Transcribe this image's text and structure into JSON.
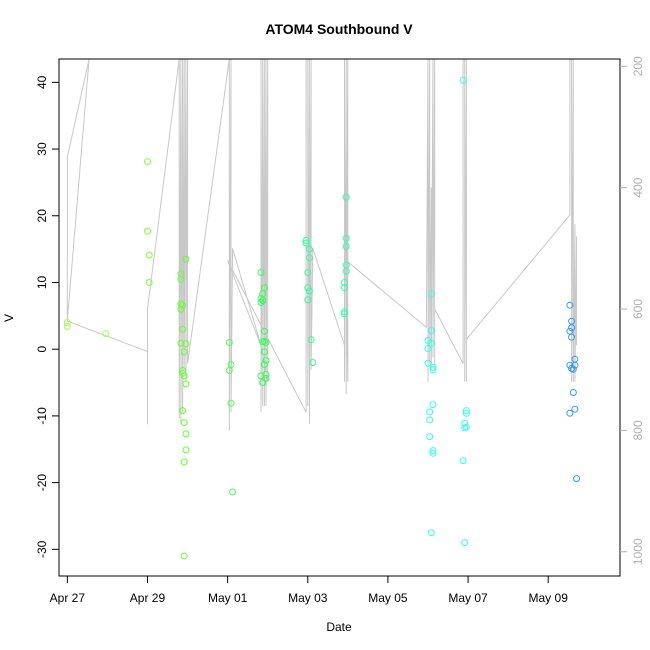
{
  "chart_data": {
    "type": "scatter",
    "title": "ATOM4 Southbound V",
    "xlabel": "Date",
    "ylabel": "V",
    "xlim": [
      "2016-04-26T19:00",
      "2016-05-10T19:00"
    ],
    "ylim": [
      -34,
      43.5
    ],
    "y2lim": [
      1040,
      188
    ],
    "x_ticks": [
      {
        "value": "2016-04-27T00:00",
        "label": "Apr 27"
      },
      {
        "value": "2016-04-29T00:00",
        "label": "Apr 29"
      },
      {
        "value": "2016-05-01T00:00",
        "label": "May 01"
      },
      {
        "value": "2016-05-03T00:00",
        "label": "May 03"
      },
      {
        "value": "2016-05-05T00:00",
        "label": "May 05"
      },
      {
        "value": "2016-05-07T00:00",
        "label": "May 07"
      },
      {
        "value": "2016-05-09T00:00",
        "label": "May 09"
      }
    ],
    "y_ticks": [
      -30,
      -20,
      -10,
      0,
      10,
      20,
      30,
      40
    ],
    "y_tick_labels": [
      "-30",
      "-20",
      "-10",
      "0",
      "10",
      "20",
      "30",
      "40"
    ],
    "y2_ticks": [
      200,
      400,
      600,
      800,
      1000
    ],
    "y2_tick_labels": [
      "200",
      "400",
      "600",
      "800",
      "1000"
    ],
    "grid": false,
    "colors": {
      "line": "#c8c8c8",
      "axis": "#000000",
      "axis2": "#b0b0b0"
    },
    "points": [
      {
        "x": "2016-04-27T00:00",
        "y": 4.0,
        "color": "#a6ff4d"
      },
      {
        "x": "2016-04-27T00:00",
        "y": 3.4,
        "color": "#a6ff4d"
      },
      {
        "x": "2016-04-27T23:00",
        "y": 2.3,
        "color": "#99ff4d"
      },
      {
        "x": "2016-04-29T00:00",
        "y": 28.1,
        "color": "#80ff33"
      },
      {
        "x": "2016-04-29T00:00",
        "y": 17.7,
        "color": "#80ff33"
      },
      {
        "x": "2016-04-29T01:00",
        "y": 14.1,
        "color": "#80ff33"
      },
      {
        "x": "2016-04-29T01:00",
        "y": 10.0,
        "color": "#80ff33"
      },
      {
        "x": "2016-04-29T20:00",
        "y": 11.3,
        "color": "#66ff33"
      },
      {
        "x": "2016-04-29T20:00",
        "y": 10.5,
        "color": "#66ff33"
      },
      {
        "x": "2016-04-29T20:00",
        "y": 6.8,
        "color": "#66ff33"
      },
      {
        "x": "2016-04-29T20:00",
        "y": 6.0,
        "color": "#66ff33"
      },
      {
        "x": "2016-04-29T20:00",
        "y": 0.9,
        "color": "#66ff33"
      },
      {
        "x": "2016-04-29T21:00",
        "y": 6.6,
        "color": "#66ff33"
      },
      {
        "x": "2016-04-29T21:00",
        "y": 3.0,
        "color": "#66ff33"
      },
      {
        "x": "2016-04-29T21:00",
        "y": -3.2,
        "color": "#66ff33"
      },
      {
        "x": "2016-04-29T21:00",
        "y": -3.6,
        "color": "#66ff33"
      },
      {
        "x": "2016-04-29T21:00",
        "y": -9.2,
        "color": "#66ff33"
      },
      {
        "x": "2016-04-29T22:00",
        "y": -4.0,
        "color": "#66ff33"
      },
      {
        "x": "2016-04-29T22:00",
        "y": -0.4,
        "color": "#66ff33"
      },
      {
        "x": "2016-04-29T22:00",
        "y": -11.0,
        "color": "#66ff33"
      },
      {
        "x": "2016-04-29T22:00",
        "y": -16.9,
        "color": "#66ff33"
      },
      {
        "x": "2016-04-29T22:00",
        "y": -31.0,
        "color": "#66ff33"
      },
      {
        "x": "2016-04-29T23:00",
        "y": 13.5,
        "color": "#66ff33"
      },
      {
        "x": "2016-04-29T23:00",
        "y": 0.8,
        "color": "#66ff33"
      },
      {
        "x": "2016-04-29T23:00",
        "y": -5.2,
        "color": "#66ff33"
      },
      {
        "x": "2016-04-29T23:00",
        "y": -12.7,
        "color": "#66ff33"
      },
      {
        "x": "2016-04-29T23:00",
        "y": -15.1,
        "color": "#66ff33"
      },
      {
        "x": "2016-05-01T01:00",
        "y": 1.0,
        "color": "#4dff4d"
      },
      {
        "x": "2016-05-01T01:00",
        "y": -3.2,
        "color": "#4dff4d"
      },
      {
        "x": "2016-05-01T02:00",
        "y": -2.3,
        "color": "#4dff4d"
      },
      {
        "x": "2016-05-01T02:00",
        "y": -8.1,
        "color": "#4dff4d"
      },
      {
        "x": "2016-05-01T03:00",
        "y": -21.4,
        "color": "#4dff4d"
      },
      {
        "x": "2016-05-01T20:00",
        "y": 11.5,
        "color": "#33ff55"
      },
      {
        "x": "2016-05-01T20:00",
        "y": 7.6,
        "color": "#33ff55"
      },
      {
        "x": "2016-05-01T20:00",
        "y": 7.0,
        "color": "#33ff55"
      },
      {
        "x": "2016-05-01T20:00",
        "y": -4.0,
        "color": "#33ff55"
      },
      {
        "x": "2016-05-01T21:00",
        "y": 8.3,
        "color": "#33ff55"
      },
      {
        "x": "2016-05-01T21:00",
        "y": 7.3,
        "color": "#33ff55"
      },
      {
        "x": "2016-05-01T21:00",
        "y": 1.1,
        "color": "#33ff55"
      },
      {
        "x": "2016-05-01T21:00",
        "y": -5.0,
        "color": "#33ff55"
      },
      {
        "x": "2016-05-01T22:00",
        "y": 9.2,
        "color": "#33ff55"
      },
      {
        "x": "2016-05-01T22:00",
        "y": 2.7,
        "color": "#33ff55"
      },
      {
        "x": "2016-05-01T22:00",
        "y": 1.2,
        "color": "#33ff55"
      },
      {
        "x": "2016-05-01T22:00",
        "y": -0.4,
        "color": "#33ff55"
      },
      {
        "x": "2016-05-01T22:00",
        "y": -2.3,
        "color": "#33ff55"
      },
      {
        "x": "2016-05-01T23:00",
        "y": 1.0,
        "color": "#33ff55"
      },
      {
        "x": "2016-05-01T23:00",
        "y": -1.7,
        "color": "#33ff55"
      },
      {
        "x": "2016-05-01T23:00",
        "y": -3.8,
        "color": "#33ff55"
      },
      {
        "x": "2016-05-01T23:00",
        "y": -4.4,
        "color": "#33ff55"
      },
      {
        "x": "2016-05-02T23:00",
        "y": 16.3,
        "color": "#33ff99"
      },
      {
        "x": "2016-05-02T23:00",
        "y": 15.9,
        "color": "#33ff99"
      },
      {
        "x": "2016-05-03T00:00",
        "y": 11.5,
        "color": "#33ff99"
      },
      {
        "x": "2016-05-03T00:00",
        "y": 9.2,
        "color": "#33ff99"
      },
      {
        "x": "2016-05-03T00:00",
        "y": 7.4,
        "color": "#33ff99"
      },
      {
        "x": "2016-05-03T01:00",
        "y": 15.0,
        "color": "#33ff99"
      },
      {
        "x": "2016-05-03T01:00",
        "y": 13.7,
        "color": "#33ff99"
      },
      {
        "x": "2016-05-03T01:00",
        "y": 8.7,
        "color": "#33ff99"
      },
      {
        "x": "2016-05-03T02:00",
        "y": 1.4,
        "color": "#33ff99"
      },
      {
        "x": "2016-05-03T03:00",
        "y": -2.0,
        "color": "#33ff99"
      },
      {
        "x": "2016-05-03T22:00",
        "y": 10.0,
        "color": "#33ffaa"
      },
      {
        "x": "2016-05-03T22:00",
        "y": 9.2,
        "color": "#33ffaa"
      },
      {
        "x": "2016-05-03T22:00",
        "y": 5.6,
        "color": "#33ffaa"
      },
      {
        "x": "2016-05-03T22:00",
        "y": 5.3,
        "color": "#33ffaa"
      },
      {
        "x": "2016-05-03T23:00",
        "y": 22.8,
        "color": "#33ffaa"
      },
      {
        "x": "2016-05-03T23:00",
        "y": 16.6,
        "color": "#33ffaa"
      },
      {
        "x": "2016-05-03T23:00",
        "y": 15.4,
        "color": "#33ffaa"
      },
      {
        "x": "2016-05-03T23:00",
        "y": 12.6,
        "color": "#33ffaa"
      },
      {
        "x": "2016-05-03T23:00",
        "y": 11.7,
        "color": "#33ffaa"
      },
      {
        "x": "2016-05-06T00:00",
        "y": 1.3,
        "color": "#33ffee"
      },
      {
        "x": "2016-05-06T00:00",
        "y": 0.1,
        "color": "#33ffee"
      },
      {
        "x": "2016-05-06T00:00",
        "y": -2.1,
        "color": "#33ffee"
      },
      {
        "x": "2016-05-06T01:00",
        "y": -9.4,
        "color": "#33ffee"
      },
      {
        "x": "2016-05-06T01:00",
        "y": -10.6,
        "color": "#33ffee"
      },
      {
        "x": "2016-05-06T01:00",
        "y": -13.1,
        "color": "#33ffee"
      },
      {
        "x": "2016-05-06T02:00",
        "y": 8.3,
        "color": "#33ffee"
      },
      {
        "x": "2016-05-06T02:00",
        "y": 2.8,
        "color": "#33ffee"
      },
      {
        "x": "2016-05-06T02:00",
        "y": 0.9,
        "color": "#33ffee"
      },
      {
        "x": "2016-05-06T02:00",
        "y": -27.5,
        "color": "#33ffee"
      },
      {
        "x": "2016-05-06T03:00",
        "y": -2.7,
        "color": "#33ffee"
      },
      {
        "x": "2016-05-06T03:00",
        "y": -3.1,
        "color": "#33ffee"
      },
      {
        "x": "2016-05-06T03:00",
        "y": -8.3,
        "color": "#33ffee"
      },
      {
        "x": "2016-05-06T03:00",
        "y": -15.2,
        "color": "#33ffee"
      },
      {
        "x": "2016-05-06T03:00",
        "y": -15.6,
        "color": "#33ffee"
      },
      {
        "x": "2016-05-06T21:00",
        "y": 40.3,
        "color": "#33fff5"
      },
      {
        "x": "2016-05-06T21:00",
        "y": -16.7,
        "color": "#33fff5"
      },
      {
        "x": "2016-05-06T22:00",
        "y": -11.1,
        "color": "#33fff5"
      },
      {
        "x": "2016-05-06T22:00",
        "y": -11.8,
        "color": "#33fff5"
      },
      {
        "x": "2016-05-06T22:00",
        "y": -29.0,
        "color": "#33fff5"
      },
      {
        "x": "2016-05-06T23:00",
        "y": -9.2,
        "color": "#33fff5"
      },
      {
        "x": "2016-05-06T23:00",
        "y": -9.6,
        "color": "#33fff5"
      },
      {
        "x": "2016-05-06T23:00",
        "y": -11.7,
        "color": "#33fff5"
      },
      {
        "x": "2016-05-09T13:00",
        "y": 6.6,
        "color": "#3399ff"
      },
      {
        "x": "2016-05-09T13:00",
        "y": 2.7,
        "color": "#3399ff"
      },
      {
        "x": "2016-05-09T13:00",
        "y": -2.4,
        "color": "#3399ff"
      },
      {
        "x": "2016-05-09T13:00",
        "y": -9.6,
        "color": "#3399ff"
      },
      {
        "x": "2016-05-09T14:00",
        "y": 4.2,
        "color": "#3399ff"
      },
      {
        "x": "2016-05-09T14:00",
        "y": 3.2,
        "color": "#3399ff"
      },
      {
        "x": "2016-05-09T14:00",
        "y": 1.8,
        "color": "#3399ff"
      },
      {
        "x": "2016-05-09T14:00",
        "y": -2.9,
        "color": "#3399ff"
      },
      {
        "x": "2016-05-09T15:00",
        "y": -3.0,
        "color": "#3399ff"
      },
      {
        "x": "2016-05-09T15:00",
        "y": -6.5,
        "color": "#3399ff"
      },
      {
        "x": "2016-05-09T16:00",
        "y": -1.5,
        "color": "#3399ff"
      },
      {
        "x": "2016-05-09T16:00",
        "y": -2.4,
        "color": "#3399ff"
      },
      {
        "x": "2016-05-09T16:00",
        "y": -9.0,
        "color": "#3399ff"
      },
      {
        "x": "2016-05-09T17:00",
        "y": -19.4,
        "color": "#3399ff"
      }
    ],
    "line_y2": [
      [
        "2016-04-27T00:00",
        620
      ],
      [
        "2016-04-27T00:00",
        350
      ],
      [
        "2016-04-27T13:00",
        188
      ],
      [
        "2016-04-27T00:00",
        620
      ],
      [
        "2016-04-29T00:00",
        670
      ],
      [
        "2016-04-29T00:00",
        790
      ],
      [
        "2016-04-29T00:00",
        600
      ],
      [
        "2016-04-29T19:00",
        188
      ],
      [
        "2016-04-29T19:00",
        780
      ],
      [
        "2016-04-29T20:00",
        188
      ],
      [
        "2016-04-29T20:00",
        790
      ],
      [
        "2016-04-29T21:00",
        188
      ],
      [
        "2016-04-29T21:00",
        770
      ],
      [
        "2016-04-29T22:00",
        188
      ],
      [
        "2016-04-29T22:00",
        700
      ],
      [
        "2016-04-29T23:00",
        188
      ],
      [
        "2016-04-29T23:00",
        720
      ],
      [
        "2016-04-30T00:00",
        188
      ],
      [
        "2016-04-30T00:00",
        690
      ],
      [
        "2016-05-01T01:00",
        188
      ],
      [
        "2016-05-01T01:00",
        800
      ],
      [
        "2016-05-01T02:00",
        188
      ],
      [
        "2016-05-01T02:00",
        770
      ],
      [
        "2016-05-01T03:00",
        500
      ],
      [
        "2016-05-01T20:00",
        660
      ],
      [
        "2016-05-01T20:00",
        188
      ],
      [
        "2016-05-01T20:00",
        770
      ],
      [
        "2016-05-01T21:00",
        188
      ],
      [
        "2016-05-01T21:00",
        760
      ],
      [
        "2016-05-01T22:00",
        188
      ],
      [
        "2016-05-01T22:00",
        760
      ],
      [
        "2016-05-01T23:00",
        188
      ],
      [
        "2016-05-01T23:00",
        760
      ],
      [
        "2016-05-02T00:00",
        188
      ],
      [
        "2016-05-02T00:00",
        720
      ],
      [
        "2016-05-01T20:00",
        660
      ],
      [
        "2016-05-01T00:00",
        520
      ],
      [
        "2016-05-02T23:00",
        770
      ],
      [
        "2016-05-02T23:00",
        188
      ],
      [
        "2016-05-03T00:00",
        188
      ],
      [
        "2016-05-03T00:00",
        760
      ],
      [
        "2016-05-03T01:00",
        188
      ],
      [
        "2016-05-03T01:00",
        790
      ],
      [
        "2016-05-03T02:00",
        188
      ],
      [
        "2016-05-03T02:00",
        700
      ],
      [
        "2016-05-03T03:00",
        500
      ],
      [
        "2016-05-03T22:00",
        660
      ],
      [
        "2016-05-03T22:00",
        188
      ],
      [
        "2016-05-03T22:00",
        720
      ],
      [
        "2016-05-03T23:00",
        188
      ],
      [
        "2016-05-03T23:00",
        740
      ],
      [
        "2016-05-04T00:00",
        188
      ],
      [
        "2016-05-04T00:00",
        720
      ],
      [
        "2016-05-03T23:00",
        520
      ],
      [
        "2016-05-05T23:00",
        630
      ],
      [
        "2016-05-06T00:00",
        188
      ],
      [
        "2016-05-06T00:00",
        720
      ],
      [
        "2016-05-06T01:00",
        188
      ],
      [
        "2016-05-06T01:00",
        690
      ],
      [
        "2016-05-06T02:00",
        400
      ],
      [
        "2016-05-06T02:00",
        700
      ],
      [
        "2016-05-06T03:00",
        188
      ],
      [
        "2016-05-06T03:00",
        680
      ],
      [
        "2016-05-06T04:00",
        188
      ],
      [
        "2016-05-06T04:00",
        700
      ],
      [
        "2016-05-06T04:00",
        600
      ],
      [
        "2016-05-06T21:00",
        690
      ],
      [
        "2016-05-06T21:00",
        188
      ],
      [
        "2016-05-06T22:00",
        188
      ],
      [
        "2016-05-06T22:00",
        720
      ],
      [
        "2016-05-06T23:00",
        188
      ],
      [
        "2016-05-06T23:00",
        720
      ],
      [
        "2016-05-06T23:00",
        650
      ],
      [
        "2016-05-09T13:00",
        445
      ],
      [
        "2016-05-09T13:00",
        188
      ],
      [
        "2016-05-09T14:00",
        188
      ],
      [
        "2016-05-09T14:00",
        720
      ],
      [
        "2016-05-09T15:00",
        188
      ],
      [
        "2016-05-09T15:00",
        720
      ],
      [
        "2016-05-09T16:00",
        460
      ],
      [
        "2016-05-09T16:00",
        720
      ],
      [
        "2016-05-09T17:00",
        480
      ],
      [
        "2016-05-09T17:00",
        660
      ]
    ]
  }
}
